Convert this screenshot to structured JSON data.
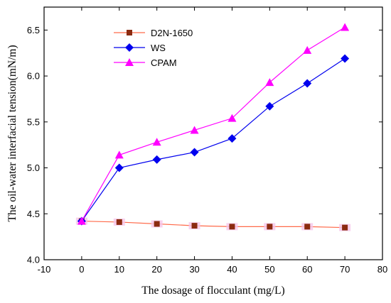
{
  "chart_data": {
    "type": "line",
    "x": [
      0,
      10,
      20,
      30,
      40,
      50,
      60,
      70
    ],
    "xlabel": "The dosage of flocculant (mg/L)",
    "ylabel": "The oil-water interfacial tension(mN/m)",
    "xlim": [
      -10,
      80
    ],
    "ylim": [
      4.0,
      6.75
    ],
    "xticks": [
      -10,
      0,
      10,
      20,
      30,
      40,
      50,
      60,
      70,
      80
    ],
    "yticks": [
      4.0,
      4.5,
      5.0,
      5.5,
      6.0,
      6.5
    ],
    "ytick_labels": [
      "4.0",
      "4.5",
      "5.0",
      "5.5",
      "6.0",
      "6.5"
    ],
    "legend_position": "top-left",
    "series": [
      {
        "name": "D2N-1650",
        "values": [
          4.42,
          4.41,
          4.39,
          4.37,
          4.36,
          4.36,
          4.36,
          4.35
        ],
        "color": "#ff6a4a",
        "marker": "square",
        "marker_color": "#8b2b10",
        "marker_halo": "#f6c6ea"
      },
      {
        "name": "WS",
        "values": [
          4.42,
          5.0,
          5.09,
          5.17,
          5.32,
          5.67,
          5.92,
          6.19
        ],
        "color": "#0000ee",
        "marker": "diamond",
        "marker_color": "#0000ee"
      },
      {
        "name": "CPAM",
        "values": [
          4.42,
          5.14,
          5.28,
          5.41,
          5.54,
          5.93,
          6.28,
          6.53
        ],
        "color": "#ff00ff",
        "marker": "triangle",
        "marker_color": "#ff00ff"
      }
    ]
  }
}
